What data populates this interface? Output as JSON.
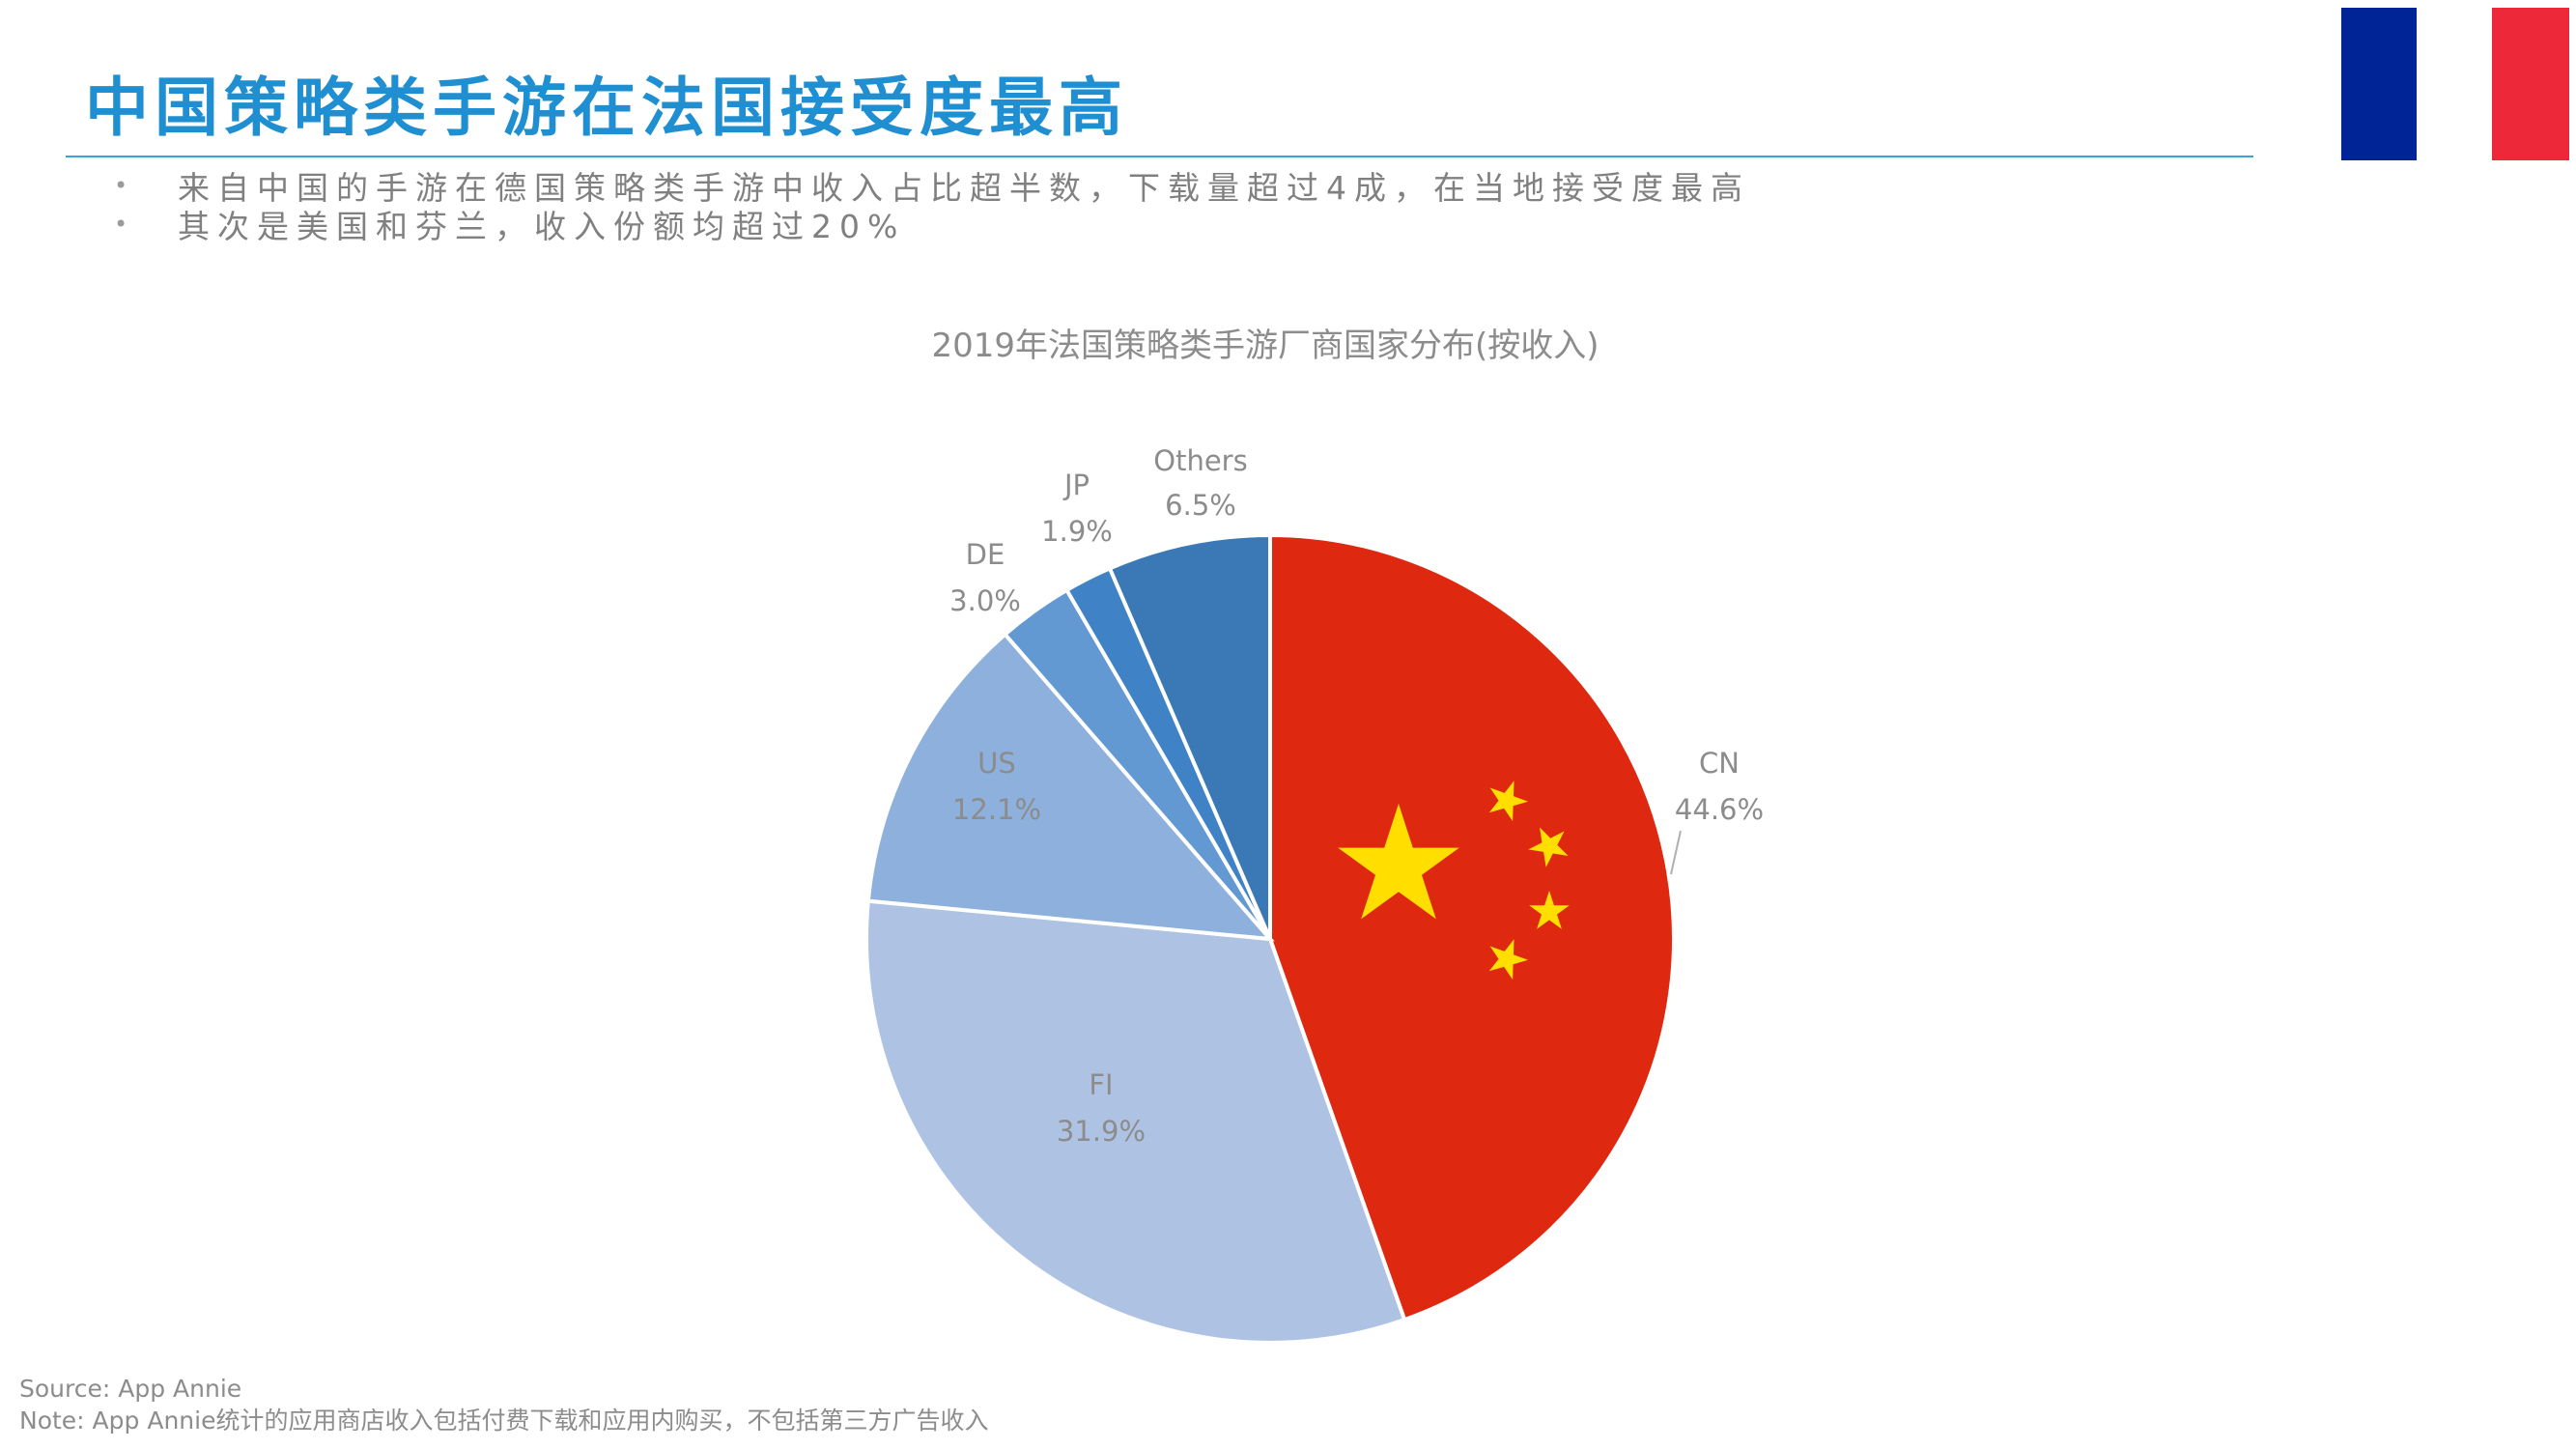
{
  "header": {
    "title": "中国策略类手游在法国接受度最高",
    "bullets": [
      "来自中国的手游在德国策略类手游中收入占比超半数，下载量超过4成，在当地接受度最高",
      "其次是美国和芬兰，收入份额均超过20%"
    ]
  },
  "flag": {
    "colors": [
      "#002395",
      "#ffffff",
      "#ed2939"
    ]
  },
  "chart_data": {
    "type": "pie",
    "title": "2019年法国策略类手游厂商国家分布(按收入)",
    "categories": [
      "CN",
      "FI",
      "US",
      "DE",
      "JP",
      "Others"
    ],
    "values": [
      44.6,
      31.9,
      12.1,
      3.0,
      1.9,
      6.5
    ],
    "labels": [
      "44.6%",
      "31.9%",
      "12.1%",
      "3.0%",
      "1.9%",
      "6.5%"
    ],
    "colors": [
      "#de2910",
      "#aec3e3",
      "#8eb0dc",
      "#6399d3",
      "#3f82c6",
      "#3a79b5"
    ],
    "slice_fill_icons": [
      "china-flag",
      null,
      null,
      null,
      null,
      null
    ]
  },
  "footer": {
    "source": "Source: App Annie",
    "note": "Note: App Annie统计的应用商店收入包括付费下载和应用内购买，不包括第三方广告收入"
  }
}
